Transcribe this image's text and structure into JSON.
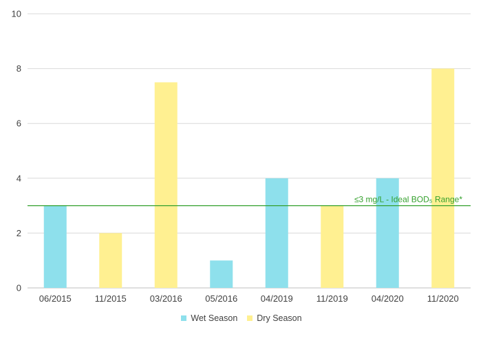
{
  "chart_data": {
    "type": "bar",
    "categories": [
      "06/2015",
      "11/2015",
      "03/2016",
      "05/2016",
      "04/2019",
      "11/2019",
      "04/2020",
      "11/2020"
    ],
    "values": [
      3,
      2,
      7.5,
      1,
      4,
      3,
      4,
      8
    ],
    "season": [
      "Wet Season",
      "Dry Season",
      "Dry Season",
      "Wet Season",
      "Wet Season",
      "Dry Season",
      "Wet Season",
      "Dry Season"
    ],
    "ylim": [
      0,
      10
    ],
    "yticks": [
      0,
      2,
      4,
      6,
      8,
      10
    ],
    "ytick_labels": [
      "0",
      "2",
      "4",
      "6",
      "8",
      "10"
    ],
    "grid": true,
    "legend": {
      "placement": "bottom",
      "entries": [
        {
          "name": "Wet Season",
          "color": "#8ee0ec"
        },
        {
          "name": "Dry Season",
          "color": "#fff091"
        }
      ]
    },
    "reference_line": {
      "value": 3,
      "label": "≤3 mg/L - Ideal BOD₅ Range*",
      "color": "#33a02c"
    }
  }
}
